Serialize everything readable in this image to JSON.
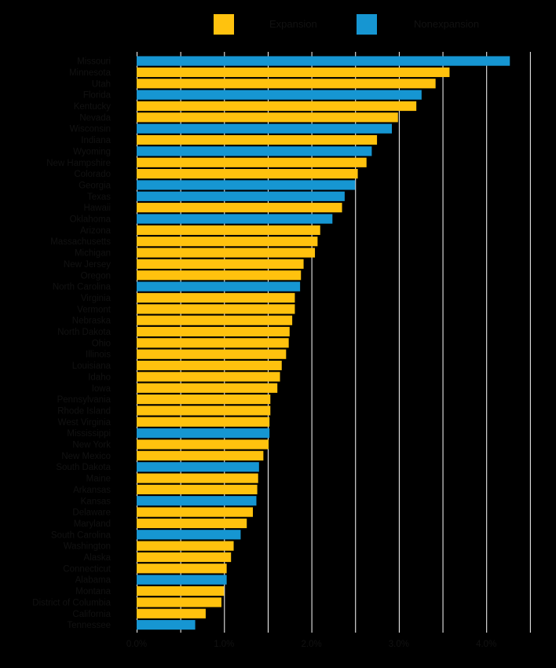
{
  "legend": {
    "expansion_label": "Expansion",
    "nonexpansion_label": "Nonexpansion"
  },
  "colors": {
    "background": "#000000",
    "expansion": "#FFC20E",
    "nonexpansion": "#1696D2",
    "grid": "#ffffff",
    "text": "#111111"
  },
  "chart_data": {
    "type": "bar",
    "orientation": "horizontal",
    "title": "",
    "xlabel": "",
    "ylabel": "",
    "xlim": [
      0,
      4.5
    ],
    "x_ticks": [
      "0.0%",
      "1.0%",
      "2.0%",
      "3.0%",
      "4.0%"
    ],
    "grid": true,
    "legend_position": "top",
    "categories": [
      "Missouri",
      "Minnesota",
      "Utah",
      "Florida",
      "Kentucky",
      "Nevada",
      "Wisconsin",
      "Indiana",
      "Wyoming",
      "New Hampshire",
      "Colorado",
      "Georgia",
      "Texas",
      "Hawaii",
      "Oklahoma",
      "Arizona",
      "Massachusetts",
      "Michigan",
      "New Jersey",
      "Oregon",
      "North Carolina",
      "Virginia",
      "Vermont",
      "Nebraska",
      "North Dakota",
      "Ohio",
      "Illinois",
      "Louisiana",
      "Idaho",
      "Iowa",
      "Pennsylvania",
      "Rhode Island",
      "West Virginia",
      "Mississippi",
      "New York",
      "New Mexico",
      "South Dakota",
      "Maine",
      "Arkansas",
      "Kansas",
      "Delaware",
      "Maryland",
      "South Carolina",
      "Washington",
      "Alaska",
      "Connecticut",
      "Alabama",
      "Montana",
      "District of Columbia",
      "California",
      "Tennessee"
    ],
    "values": [
      4.27,
      3.58,
      3.42,
      3.26,
      3.2,
      2.99,
      2.92,
      2.75,
      2.69,
      2.63,
      2.53,
      2.5,
      2.38,
      2.35,
      2.24,
      2.1,
      2.07,
      2.04,
      1.91,
      1.88,
      1.87,
      1.81,
      1.81,
      1.78,
      1.75,
      1.74,
      1.71,
      1.66,
      1.64,
      1.61,
      1.53,
      1.53,
      1.52,
      1.52,
      1.51,
      1.45,
      1.4,
      1.39,
      1.38,
      1.37,
      1.33,
      1.26,
      1.19,
      1.11,
      1.08,
      1.03,
      1.03,
      1.0,
      0.97,
      0.79,
      0.67
    ],
    "groups": [
      "Nonexpansion",
      "Expansion",
      "Expansion",
      "Nonexpansion",
      "Expansion",
      "Expansion",
      "Nonexpansion",
      "Expansion",
      "Nonexpansion",
      "Expansion",
      "Expansion",
      "Nonexpansion",
      "Nonexpansion",
      "Expansion",
      "Nonexpansion",
      "Expansion",
      "Expansion",
      "Expansion",
      "Expansion",
      "Expansion",
      "Nonexpansion",
      "Expansion",
      "Expansion",
      "Expansion",
      "Expansion",
      "Expansion",
      "Expansion",
      "Expansion",
      "Expansion",
      "Expansion",
      "Expansion",
      "Expansion",
      "Expansion",
      "Nonexpansion",
      "Expansion",
      "Expansion",
      "Nonexpansion",
      "Expansion",
      "Expansion",
      "Nonexpansion",
      "Expansion",
      "Expansion",
      "Nonexpansion",
      "Expansion",
      "Expansion",
      "Expansion",
      "Nonexpansion",
      "Expansion",
      "Expansion",
      "Expansion",
      "Nonexpansion"
    ]
  }
}
